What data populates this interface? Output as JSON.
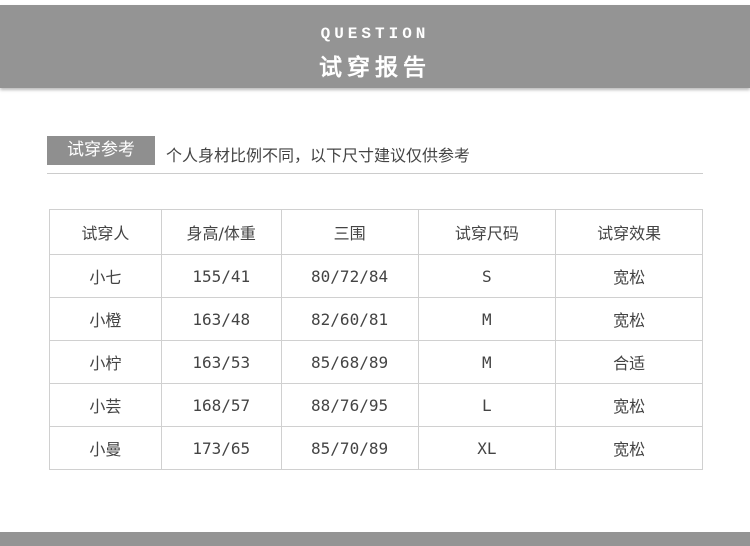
{
  "header": {
    "en_title": "QUESTION",
    "cn_title": "试穿报告"
  },
  "section": {
    "tag": "试穿参考",
    "note": "个人身材比例不同，以下尺寸建议仅供参考"
  },
  "table": {
    "columns": [
      "试穿人",
      "身高/体重",
      "三围",
      "试穿尺码",
      "试穿效果"
    ],
    "rows": [
      [
        "小七",
        "155/41",
        "80/72/84",
        "S",
        "宽松"
      ],
      [
        "小橙",
        "163/48",
        "82/60/81",
        "M",
        "宽松"
      ],
      [
        "小柠",
        "163/53",
        "85/68/89",
        "M",
        "合适"
      ],
      [
        "小芸",
        "168/57",
        "88/76/95",
        "L",
        "宽松"
      ],
      [
        "小曼",
        "173/65",
        "85/70/89",
        "XL",
        "宽松"
      ]
    ]
  },
  "colors": {
    "band": "#949494",
    "tag": "#8f8f8f"
  }
}
